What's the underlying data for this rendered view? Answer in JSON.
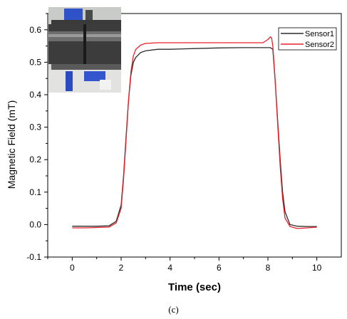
{
  "chart_data": {
    "type": "line",
    "xlabel": "Time (sec)",
    "ylabel": "Magnetic Field (mT)",
    "xlim": [
      -1,
      11
    ],
    "ylim": [
      -0.1,
      0.65
    ],
    "xticks": [
      0,
      2,
      4,
      6,
      8,
      10
    ],
    "yticks": [
      -0.1,
      0.0,
      0.1,
      0.2,
      0.3,
      0.4,
      0.5,
      0.6
    ],
    "ytick_labels": [
      "-0.1",
      "0.0",
      "0.1",
      "0.2",
      "0.3",
      "0.4",
      "0.5",
      "0.6"
    ],
    "legend_position": "top-right",
    "inset_image": "photo of pipe sample clamped in sensor fixture",
    "series": [
      {
        "name": "Sensor1",
        "color": "#2b2b2b",
        "x": [
          0,
          0.5,
          1.0,
          1.5,
          1.8,
          2.0,
          2.1,
          2.2,
          2.3,
          2.4,
          2.5,
          2.6,
          2.8,
          3.0,
          3.5,
          4.0,
          5.0,
          6.0,
          7.0,
          7.8,
          8.0,
          8.1,
          8.2,
          8.3,
          8.4,
          8.5,
          8.6,
          8.7,
          8.9,
          9.2,
          9.6,
          10.0
        ],
        "y": [
          -0.005,
          -0.005,
          -0.005,
          -0.004,
          0.01,
          0.06,
          0.15,
          0.27,
          0.38,
          0.46,
          0.5,
          0.515,
          0.53,
          0.535,
          0.54,
          0.54,
          0.542,
          0.544,
          0.545,
          0.545,
          0.545,
          0.545,
          0.54,
          0.44,
          0.32,
          0.2,
          0.1,
          0.04,
          0.0,
          -0.005,
          -0.006,
          -0.006
        ]
      },
      {
        "name": "Sensor2",
        "color": "#e8202a",
        "x": [
          0,
          0.5,
          1.0,
          1.5,
          1.8,
          2.0,
          2.1,
          2.2,
          2.3,
          2.4,
          2.5,
          2.6,
          2.8,
          3.0,
          3.5,
          4.0,
          5.0,
          6.0,
          7.0,
          7.8,
          8.0,
          8.1,
          8.15,
          8.2,
          8.3,
          8.4,
          8.5,
          8.6,
          8.7,
          8.9,
          9.2,
          9.6,
          10.0
        ],
        "y": [
          -0.01,
          -0.01,
          -0.009,
          -0.008,
          0.005,
          0.05,
          0.14,
          0.26,
          0.38,
          0.47,
          0.52,
          0.54,
          0.553,
          0.558,
          0.56,
          0.56,
          0.56,
          0.56,
          0.56,
          0.56,
          0.57,
          0.578,
          0.575,
          0.55,
          0.44,
          0.31,
          0.18,
          0.08,
          0.02,
          -0.006,
          -0.012,
          -0.01,
          -0.008
        ]
      }
    ]
  },
  "caption": "(c)"
}
